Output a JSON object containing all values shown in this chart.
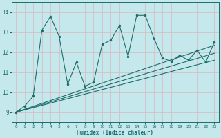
{
  "xlabel": "Humidex (Indice chaleur)",
  "xlim": [
    -0.5,
    23.5
  ],
  "ylim": [
    8.5,
    14.5
  ],
  "yticks": [
    9,
    10,
    11,
    12,
    13,
    14
  ],
  "xticks": [
    0,
    1,
    2,
    3,
    4,
    5,
    6,
    7,
    8,
    9,
    10,
    11,
    12,
    13,
    14,
    15,
    16,
    17,
    18,
    19,
    20,
    21,
    22,
    23
  ],
  "bg_color": "#c5e8ed",
  "grid_color": "#aed6dc",
  "line_color": "#1a6e6a",
  "x_data": [
    0,
    1,
    2,
    3,
    4,
    5,
    6,
    7,
    8,
    9,
    10,
    11,
    12,
    13,
    14,
    15,
    16,
    17,
    18,
    19,
    20,
    21,
    22,
    23
  ],
  "y_data": [
    9.0,
    9.3,
    9.8,
    13.1,
    13.8,
    12.8,
    10.4,
    11.5,
    10.3,
    10.5,
    12.4,
    12.6,
    13.35,
    11.8,
    13.85,
    13.85,
    12.7,
    11.7,
    11.55,
    11.85,
    11.6,
    12.1,
    11.5,
    12.5
  ],
  "reg_lines": [
    {
      "x": [
        0,
        23
      ],
      "y": [
        9.0,
        12.35
      ]
    },
    {
      "x": [
        0,
        23
      ],
      "y": [
        9.0,
        11.6
      ]
    },
    {
      "x": [
        0,
        23
      ],
      "y": [
        9.0,
        11.95
      ]
    }
  ]
}
